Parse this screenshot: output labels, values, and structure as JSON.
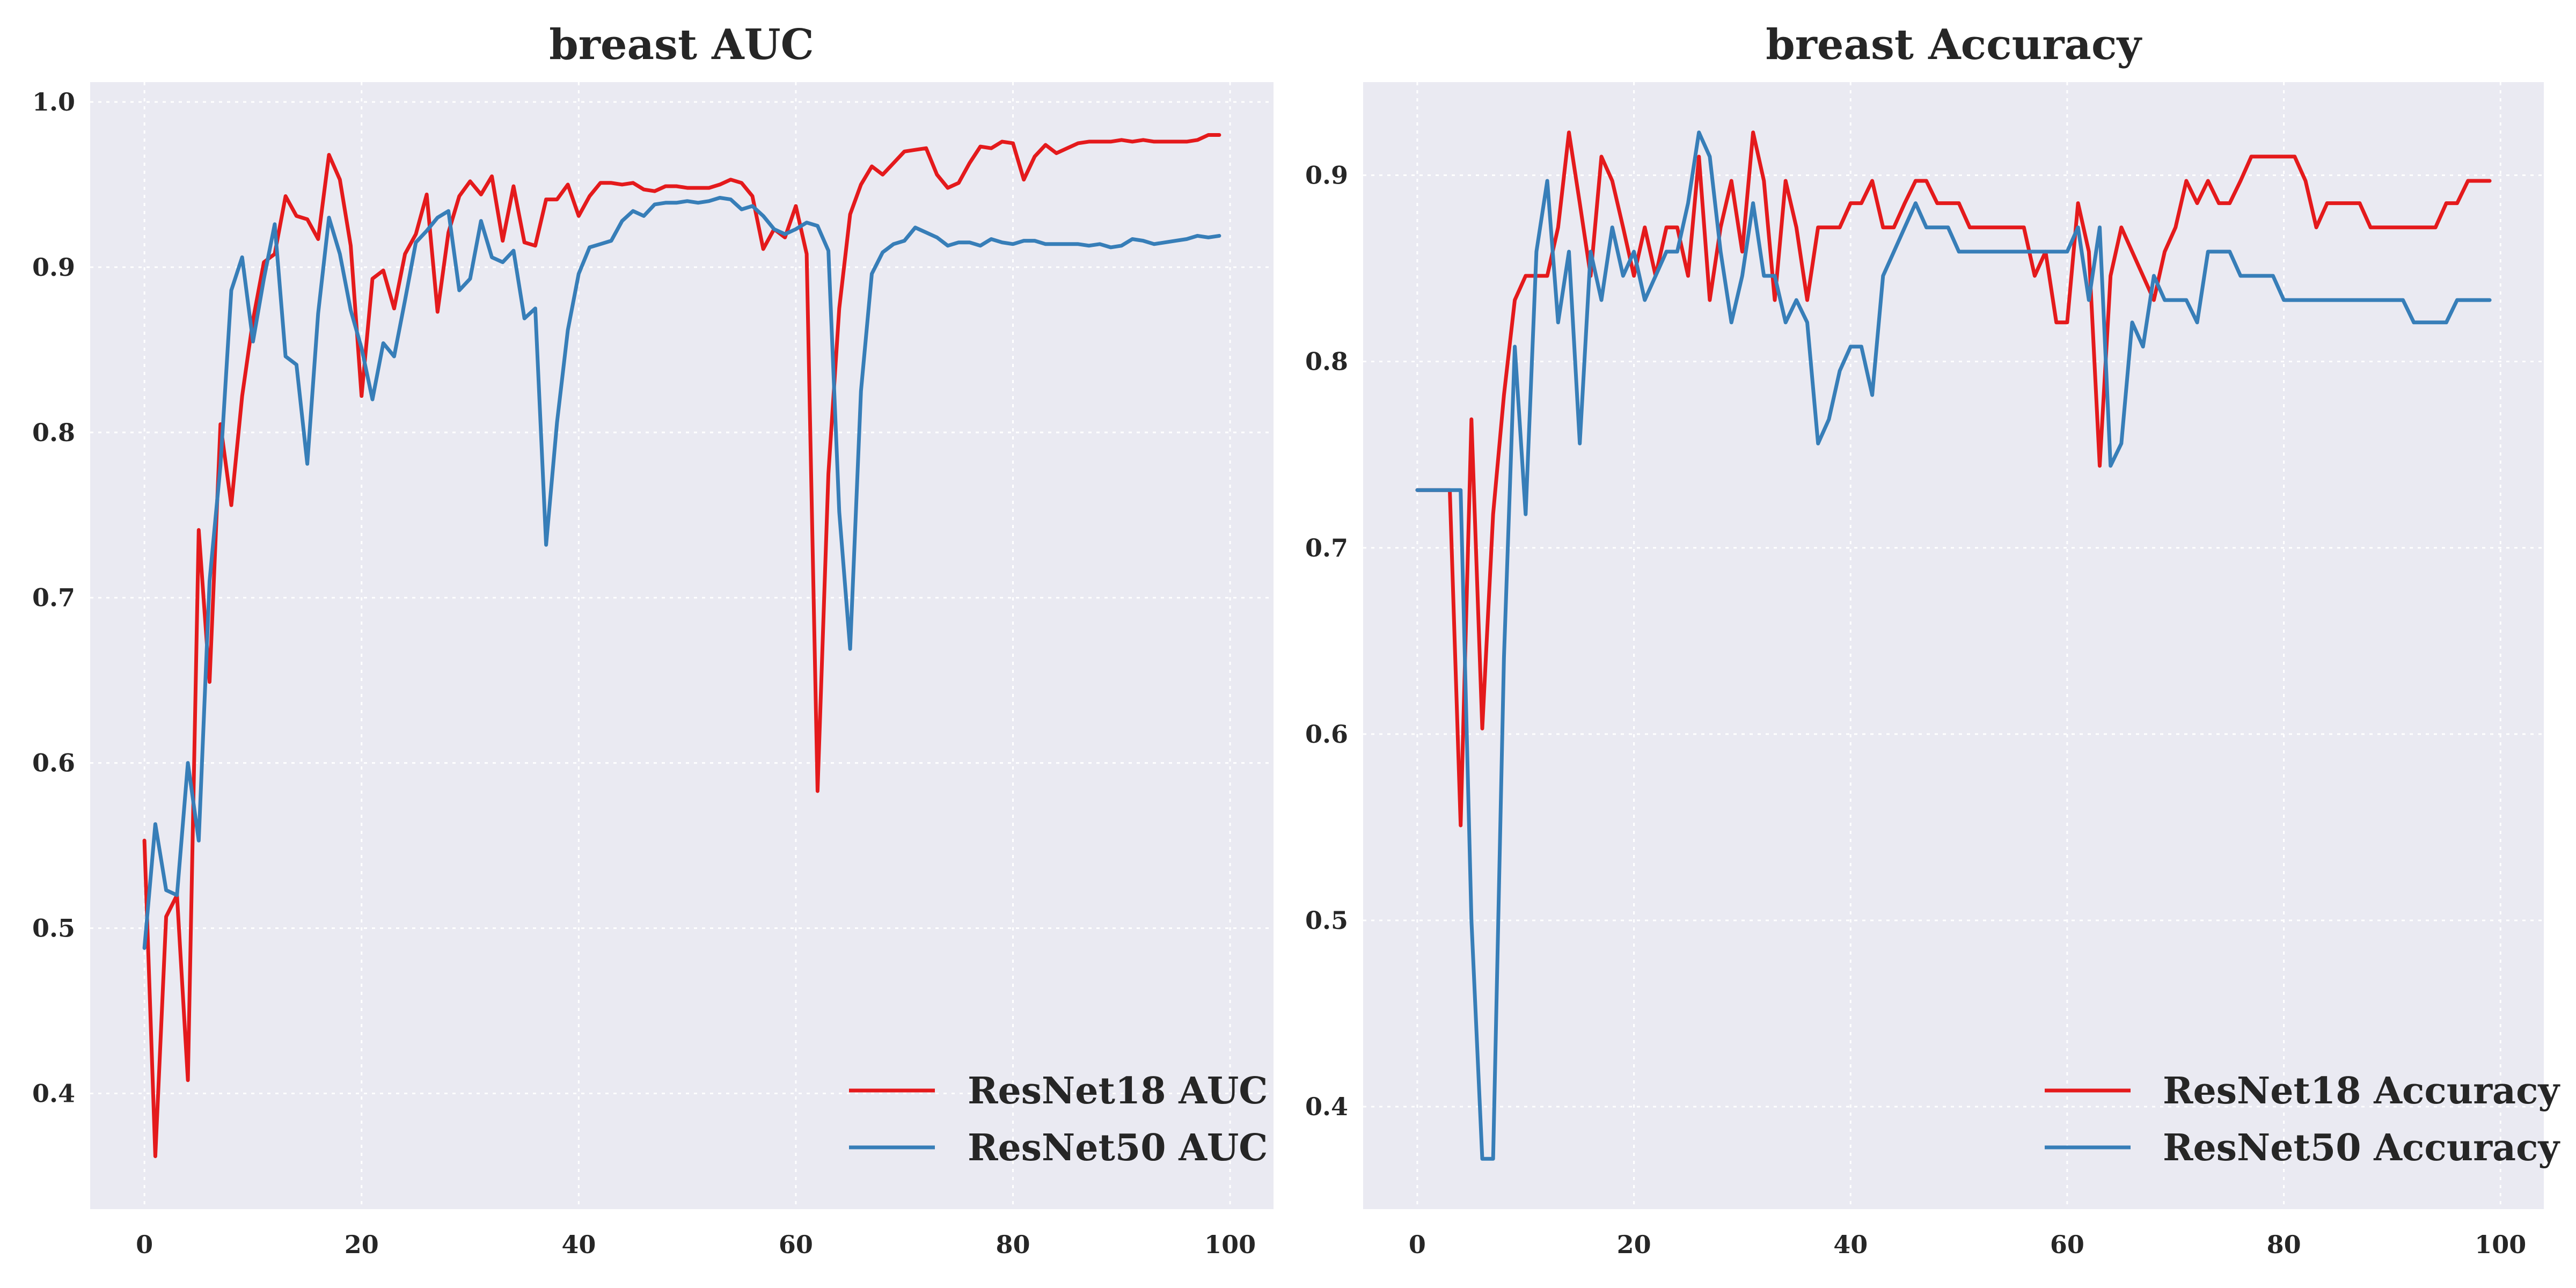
{
  "chart_data": [
    {
      "type": "line",
      "title": "breast AUC",
      "xlabel": "",
      "ylabel": "",
      "xlim": [
        -5,
        104
      ],
      "ylim": [
        0.33,
        1.012
      ],
      "xticks": [
        0,
        20,
        40,
        60,
        80,
        100
      ],
      "yticks": [
        0.4,
        0.5,
        0.6,
        0.7,
        0.8,
        0.9,
        1.0
      ],
      "xtick_labels": [
        "0",
        "20",
        "40",
        "60",
        "80",
        "100"
      ],
      "ytick_labels": [
        "0.4",
        "0.5",
        "0.6",
        "0.7",
        "0.8",
        "0.9",
        "1.0"
      ],
      "grid": true,
      "legend_position": "bottom-right",
      "x": [
        0,
        1,
        2,
        3,
        4,
        5,
        6,
        7,
        8,
        9,
        10,
        11,
        12,
        13,
        14,
        15,
        16,
        17,
        18,
        19,
        20,
        21,
        22,
        23,
        24,
        25,
        26,
        27,
        28,
        29,
        30,
        31,
        32,
        33,
        34,
        35,
        36,
        37,
        38,
        39,
        40,
        41,
        42,
        43,
        44,
        45,
        46,
        47,
        48,
        49,
        50,
        51,
        52,
        53,
        54,
        55,
        56,
        57,
        58,
        59,
        60,
        61,
        62,
        63,
        64,
        65,
        66,
        67,
        68,
        69,
        70,
        71,
        72,
        73,
        74,
        75,
        76,
        77,
        78,
        79,
        80,
        81,
        82,
        83,
        84,
        85,
        86,
        87,
        88,
        89,
        90,
        91,
        92,
        93,
        94,
        95,
        96,
        97,
        98,
        99
      ],
      "series": [
        {
          "name": "ResNet18 AUC",
          "color": "#e41a1c",
          "values": [
            0.553,
            0.362,
            0.507,
            0.52,
            0.408,
            0.741,
            0.649,
            0.805,
            0.756,
            0.822,
            0.868,
            0.903,
            0.908,
            0.943,
            0.931,
            0.929,
            0.917,
            0.968,
            0.953,
            0.913,
            0.822,
            0.893,
            0.898,
            0.875,
            0.908,
            0.92,
            0.944,
            0.873,
            0.921,
            0.943,
            0.952,
            0.944,
            0.955,
            0.916,
            0.949,
            0.915,
            0.913,
            0.941,
            0.941,
            0.95,
            0.931,
            0.943,
            0.951,
            0.951,
            0.95,
            0.951,
            0.947,
            0.946,
            0.949,
            0.949,
            0.948,
            0.948,
            0.948,
            0.95,
            0.953,
            0.951,
            0.943,
            0.911,
            0.923,
            0.918,
            0.937,
            0.908,
            0.583,
            0.775,
            0.875,
            0.932,
            0.95,
            0.961,
            0.956,
            0.963,
            0.97,
            0.971,
            0.972,
            0.956,
            0.948,
            0.951,
            0.963,
            0.973,
            0.972,
            0.976,
            0.975,
            0.953,
            0.967,
            0.974,
            0.969,
            0.972,
            0.975,
            0.976,
            0.976,
            0.976,
            0.977,
            0.976,
            0.977,
            0.976,
            0.976,
            0.976,
            0.976,
            0.977,
            0.98,
            0.98
          ]
        },
        {
          "name": "ResNet50 AUC",
          "color": "#377eb8",
          "values": [
            0.488,
            0.563,
            0.523,
            0.52,
            0.6,
            0.553,
            0.71,
            0.78,
            0.886,
            0.906,
            0.855,
            0.893,
            0.926,
            0.846,
            0.841,
            0.781,
            0.872,
            0.93,
            0.908,
            0.874,
            0.851,
            0.82,
            0.854,
            0.846,
            0.88,
            0.915,
            0.922,
            0.93,
            0.934,
            0.886,
            0.893,
            0.928,
            0.906,
            0.903,
            0.91,
            0.869,
            0.875,
            0.732,
            0.806,
            0.862,
            0.896,
            0.912,
            0.914,
            0.916,
            0.928,
            0.934,
            0.931,
            0.938,
            0.939,
            0.939,
            0.94,
            0.939,
            0.94,
            0.942,
            0.941,
            0.935,
            0.937,
            0.931,
            0.923,
            0.92,
            0.923,
            0.927,
            0.925,
            0.91,
            0.752,
            0.669,
            0.825,
            0.896,
            0.909,
            0.914,
            0.916,
            0.924,
            0.921,
            0.918,
            0.913,
            0.915,
            0.915,
            0.913,
            0.917,
            0.915,
            0.914,
            0.916,
            0.916,
            0.914,
            0.914,
            0.914,
            0.914,
            0.913,
            0.914,
            0.912,
            0.913,
            0.917,
            0.916,
            0.914,
            0.915,
            0.916,
            0.917,
            0.919,
            0.918,
            0.919
          ]
        }
      ]
    },
    {
      "type": "line",
      "title": "breast Accuracy",
      "xlabel": "",
      "ylabel": "",
      "xlim": [
        -5,
        104
      ],
      "ylim": [
        0.345,
        0.95
      ],
      "xticks": [
        0,
        20,
        40,
        60,
        80,
        100
      ],
      "yticks": [
        0.4,
        0.5,
        0.6,
        0.7,
        0.8,
        0.9
      ],
      "xtick_labels": [
        "0",
        "20",
        "40",
        "60",
        "80",
        "100"
      ],
      "ytick_labels": [
        "0.4",
        "0.5",
        "0.6",
        "0.7",
        "0.8",
        "0.9"
      ],
      "grid": true,
      "legend_position": "bottom-right",
      "x": [
        0,
        1,
        2,
        3,
        4,
        5,
        6,
        7,
        8,
        9,
        10,
        11,
        12,
        13,
        14,
        15,
        16,
        17,
        18,
        19,
        20,
        21,
        22,
        23,
        24,
        25,
        26,
        27,
        28,
        29,
        30,
        31,
        32,
        33,
        34,
        35,
        36,
        37,
        38,
        39,
        40,
        41,
        42,
        43,
        44,
        45,
        46,
        47,
        48,
        49,
        50,
        51,
        52,
        53,
        54,
        55,
        56,
        57,
        58,
        59,
        60,
        61,
        62,
        63,
        64,
        65,
        66,
        67,
        68,
        69,
        70,
        71,
        72,
        73,
        74,
        75,
        76,
        77,
        78,
        79,
        80,
        81,
        82,
        83,
        84,
        85,
        86,
        87,
        88,
        89,
        90,
        91,
        92,
        93,
        94,
        95,
        96,
        97,
        98,
        99
      ],
      "series": [
        {
          "name": "ResNet18 Accuracy",
          "color": "#e41a1c",
          "values": [
            0.731,
            0.731,
            0.731,
            0.731,
            0.551,
            0.769,
            0.603,
            0.718,
            0.782,
            0.833,
            0.846,
            0.846,
            0.846,
            0.872,
            0.923,
            0.885,
            0.846,
            0.91,
            0.897,
            0.872,
            0.846,
            0.872,
            0.846,
            0.872,
            0.872,
            0.846,
            0.91,
            0.833,
            0.872,
            0.897,
            0.859,
            0.923,
            0.897,
            0.833,
            0.897,
            0.872,
            0.833,
            0.872,
            0.872,
            0.872,
            0.885,
            0.885,
            0.897,
            0.872,
            0.872,
            0.885,
            0.897,
            0.897,
            0.885,
            0.885,
            0.885,
            0.872,
            0.872,
            0.872,
            0.872,
            0.872,
            0.872,
            0.846,
            0.859,
            0.821,
            0.821,
            0.885,
            0.859,
            0.744,
            0.846,
            0.872,
            0.859,
            0.846,
            0.833,
            0.859,
            0.872,
            0.897,
            0.885,
            0.897,
            0.885,
            0.885,
            0.897,
            0.91,
            0.91,
            0.91,
            0.91,
            0.91,
            0.897,
            0.872,
            0.885,
            0.885,
            0.885,
            0.885,
            0.872,
            0.872,
            0.872,
            0.872,
            0.872,
            0.872,
            0.872,
            0.885,
            0.885,
            0.897,
            0.897,
            0.897
          ]
        },
        {
          "name": "ResNet50 Accuracy",
          "color": "#377eb8",
          "values": [
            0.731,
            0.731,
            0.731,
            0.731,
            0.731,
            0.5,
            0.372,
            0.372,
            0.641,
            0.808,
            0.718,
            0.859,
            0.897,
            0.821,
            0.859,
            0.756,
            0.859,
            0.833,
            0.872,
            0.846,
            0.859,
            0.833,
            0.846,
            0.859,
            0.859,
            0.885,
            0.923,
            0.91,
            0.859,
            0.821,
            0.846,
            0.885,
            0.846,
            0.846,
            0.821,
            0.833,
            0.821,
            0.756,
            0.769,
            0.795,
            0.808,
            0.808,
            0.782,
            0.846,
            0.859,
            0.872,
            0.885,
            0.872,
            0.872,
            0.872,
            0.859,
            0.859,
            0.859,
            0.859,
            0.859,
            0.859,
            0.859,
            0.859,
            0.859,
            0.859,
            0.859,
            0.872,
            0.833,
            0.872,
            0.744,
            0.756,
            0.821,
            0.808,
            0.846,
            0.833,
            0.833,
            0.833,
            0.821,
            0.859,
            0.859,
            0.859,
            0.846,
            0.846,
            0.846,
            0.846,
            0.833,
            0.833,
            0.833,
            0.833,
            0.833,
            0.833,
            0.833,
            0.833,
            0.833,
            0.833,
            0.833,
            0.833,
            0.821,
            0.821,
            0.821,
            0.821,
            0.833,
            0.833,
            0.833,
            0.833
          ]
        }
      ]
    }
  ]
}
